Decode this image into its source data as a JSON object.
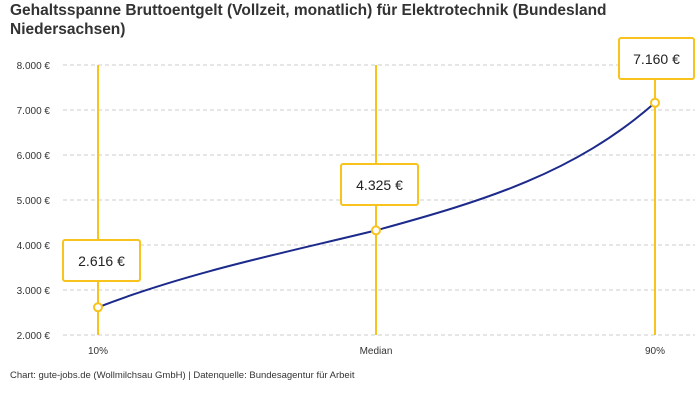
{
  "chart_data": {
    "type": "line",
    "title": "Gehaltsspanne Bruttoentgelt (Vollzeit, monatlich) für Elektrotechnik (Bundesland Niedersachsen)",
    "categories": [
      "10%",
      "Median",
      "90%"
    ],
    "values": [
      2616,
      4325,
      7160
    ],
    "data_labels": [
      "2.616 €",
      "4.325 €",
      "7.160 €"
    ],
    "yticks": [
      2000,
      3000,
      4000,
      5000,
      6000,
      7000,
      8000
    ],
    "ytick_labels": [
      "2.000 €",
      "3.000 €",
      "4.000 €",
      "5.000 €",
      "6.000 €",
      "7.000 €",
      "8.000 €"
    ],
    "ylim": [
      2000,
      8000
    ],
    "grid": "horizontal-dashed",
    "colors": {
      "line": "#1c2a8c",
      "marker": "#f7c31c",
      "grid": "#cccccc"
    },
    "footer": "Chart: gute-jobs.de (Wollmilchsau GmbH) | Datenquelle: Bundesagentur für Arbeit"
  }
}
